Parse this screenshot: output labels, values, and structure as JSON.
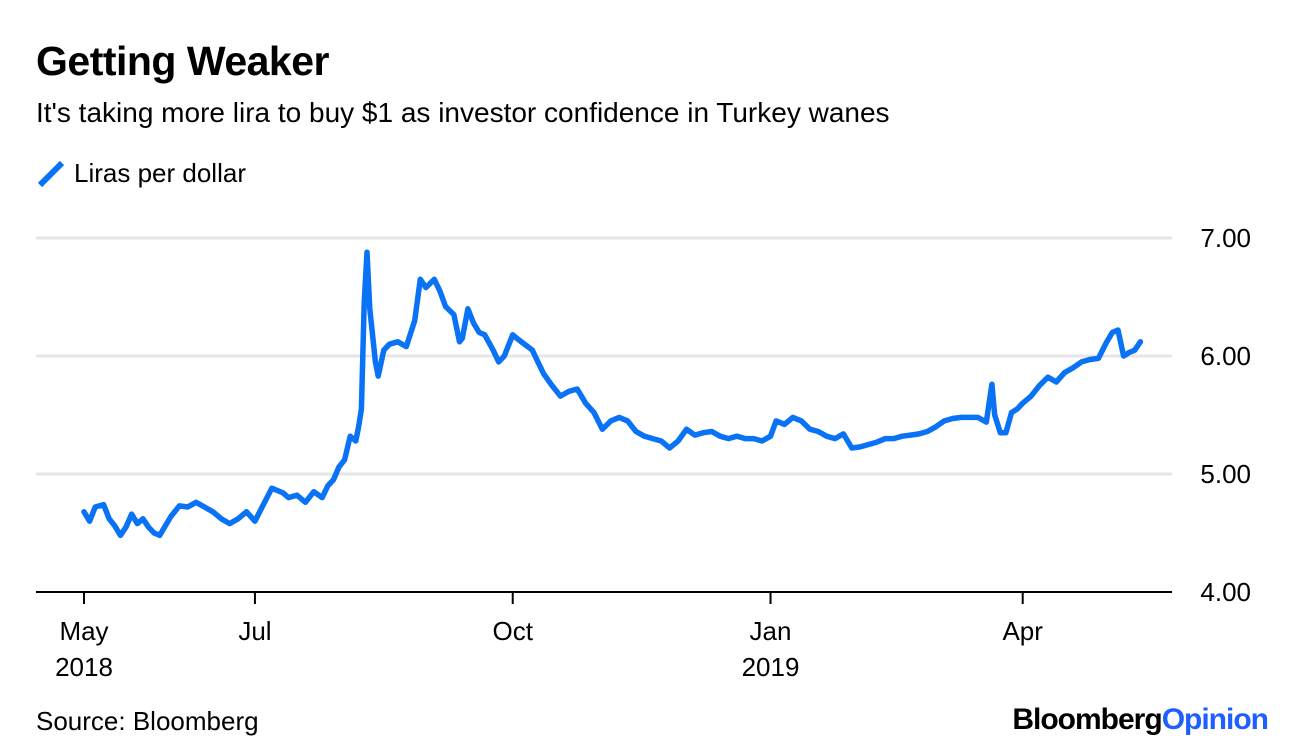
{
  "header": {
    "title": "Getting Weaker",
    "subtitle": "It's taking more lira to buy $1 as investor confidence in Turkey wanes"
  },
  "legend": {
    "label": "Liras per dollar"
  },
  "footer": {
    "source": "Source: Bloomberg",
    "brand_main": "Bloomberg",
    "brand_accent": "Opinion"
  },
  "colors": {
    "line": "#0a73f5",
    "grid": "#e6e6e6",
    "axis": "#000000",
    "brand_accent": "#1f5fff"
  },
  "chart_data": {
    "type": "line",
    "ylim": [
      4.0,
      7.0
    ],
    "y_ticks": [
      {
        "value": 7.0,
        "label": "7.00"
      },
      {
        "value": 6.0,
        "label": "6.00"
      },
      {
        "value": 5.0,
        "label": "5.00"
      },
      {
        "value": 4.0,
        "label": "4.00"
      }
    ],
    "xlim": [
      "2018-04-26",
      "2019-05-15"
    ],
    "x_ticks": [
      {
        "date": "2018-05-01",
        "label": "May",
        "sublabel": "2018"
      },
      {
        "date": "2018-07-01",
        "label": "Jul",
        "sublabel": ""
      },
      {
        "date": "2018-10-01",
        "label": "Oct",
        "sublabel": ""
      },
      {
        "date": "2019-01-01",
        "label": "Jan",
        "sublabel": "2019"
      },
      {
        "date": "2019-04-01",
        "label": "Apr",
        "sublabel": ""
      }
    ],
    "grid": "horizontal",
    "series": [
      {
        "name": "Liras per dollar",
        "x": [
          "2018-05-01",
          "2018-05-03",
          "2018-05-05",
          "2018-05-08",
          "2018-05-10",
          "2018-05-12",
          "2018-05-14",
          "2018-05-16",
          "2018-05-18",
          "2018-05-20",
          "2018-05-22",
          "2018-05-24",
          "2018-05-26",
          "2018-05-28",
          "2018-05-30",
          "2018-06-01",
          "2018-06-04",
          "2018-06-07",
          "2018-06-10",
          "2018-06-13",
          "2018-06-16",
          "2018-06-19",
          "2018-06-22",
          "2018-06-25",
          "2018-06-28",
          "2018-07-01",
          "2018-07-04",
          "2018-07-07",
          "2018-07-09",
          "2018-07-11",
          "2018-07-13",
          "2018-07-16",
          "2018-07-19",
          "2018-07-22",
          "2018-07-25",
          "2018-07-27",
          "2018-07-29",
          "2018-07-31",
          "2018-08-02",
          "2018-08-04",
          "2018-08-06",
          "2018-08-07",
          "2018-08-08",
          "2018-08-09",
          "2018-08-10",
          "2018-08-11",
          "2018-08-13",
          "2018-08-14",
          "2018-08-16",
          "2018-08-18",
          "2018-08-21",
          "2018-08-24",
          "2018-08-27",
          "2018-08-29",
          "2018-08-31",
          "2018-09-03",
          "2018-09-05",
          "2018-09-07",
          "2018-09-10",
          "2018-09-12",
          "2018-09-13",
          "2018-09-15",
          "2018-09-17",
          "2018-09-19",
          "2018-09-21",
          "2018-09-24",
          "2018-09-26",
          "2018-09-28",
          "2018-10-01",
          "2018-10-03",
          "2018-10-08",
          "2018-10-10",
          "2018-10-12",
          "2018-10-15",
          "2018-10-18",
          "2018-10-21",
          "2018-10-24",
          "2018-10-27",
          "2018-10-30",
          "2018-11-02",
          "2018-11-05",
          "2018-11-08",
          "2018-11-11",
          "2018-11-14",
          "2018-11-17",
          "2018-11-20",
          "2018-11-23",
          "2018-11-26",
          "2018-11-29",
          "2018-12-02",
          "2018-12-05",
          "2018-12-08",
          "2018-12-11",
          "2018-12-14",
          "2018-12-17",
          "2018-12-20",
          "2018-12-23",
          "2018-12-26",
          "2018-12-29",
          "2019-01-01",
          "2019-01-03",
          "2019-01-06",
          "2019-01-09",
          "2019-01-12",
          "2019-01-15",
          "2019-01-18",
          "2019-01-21",
          "2019-01-24",
          "2019-01-27",
          "2019-01-30",
          "2019-02-02",
          "2019-02-05",
          "2019-02-08",
          "2019-02-11",
          "2019-02-14",
          "2019-02-17",
          "2019-02-20",
          "2019-02-23",
          "2019-02-26",
          "2019-03-01",
          "2019-03-04",
          "2019-03-07",
          "2019-03-10",
          "2019-03-13",
          "2019-03-16",
          "2019-03-19",
          "2019-03-21",
          "2019-03-22",
          "2019-03-24",
          "2019-03-26",
          "2019-03-28",
          "2019-03-30",
          "2019-04-01",
          "2019-04-04",
          "2019-04-07",
          "2019-04-10",
          "2019-04-13",
          "2019-04-16",
          "2019-04-19",
          "2019-04-22",
          "2019-04-25",
          "2019-04-28",
          "2019-05-01",
          "2019-05-03",
          "2019-05-05",
          "2019-05-07",
          "2019-05-09",
          "2019-05-11",
          "2019-05-13"
        ],
        "values": [
          4.68,
          4.6,
          4.72,
          4.74,
          4.62,
          4.56,
          4.48,
          4.55,
          4.66,
          4.58,
          4.62,
          4.55,
          4.5,
          4.48,
          4.56,
          4.64,
          4.73,
          4.72,
          4.76,
          4.72,
          4.68,
          4.62,
          4.58,
          4.62,
          4.68,
          4.6,
          4.74,
          4.88,
          4.86,
          4.84,
          4.8,
          4.82,
          4.76,
          4.85,
          4.8,
          4.9,
          4.95,
          5.06,
          5.12,
          5.32,
          5.28,
          5.4,
          5.55,
          6.45,
          6.88,
          6.4,
          5.95,
          5.83,
          6.05,
          6.1,
          6.12,
          6.08,
          6.3,
          6.65,
          6.58,
          6.65,
          6.55,
          6.42,
          6.35,
          6.12,
          6.15,
          6.4,
          6.28,
          6.2,
          6.18,
          6.05,
          5.95,
          6.0,
          6.18,
          6.14,
          6.05,
          5.95,
          5.85,
          5.75,
          5.66,
          5.7,
          5.72,
          5.6,
          5.52,
          5.38,
          5.45,
          5.48,
          5.45,
          5.36,
          5.32,
          5.3,
          5.28,
          5.22,
          5.28,
          5.38,
          5.33,
          5.35,
          5.36,
          5.32,
          5.3,
          5.32,
          5.3,
          5.3,
          5.28,
          5.32,
          5.45,
          5.42,
          5.48,
          5.45,
          5.38,
          5.36,
          5.32,
          5.3,
          5.34,
          5.22,
          5.23,
          5.25,
          5.27,
          5.3,
          5.3,
          5.32,
          5.33,
          5.34,
          5.36,
          5.4,
          5.45,
          5.47,
          5.48,
          5.48,
          5.48,
          5.44,
          5.76,
          5.5,
          5.35,
          5.35,
          5.52,
          5.55,
          5.6,
          5.66,
          5.75,
          5.82,
          5.78,
          5.86,
          5.9,
          5.95,
          5.97,
          5.98,
          6.12,
          6.2,
          6.22,
          6.0,
          6.03,
          6.05,
          6.12
        ]
      }
    ]
  }
}
